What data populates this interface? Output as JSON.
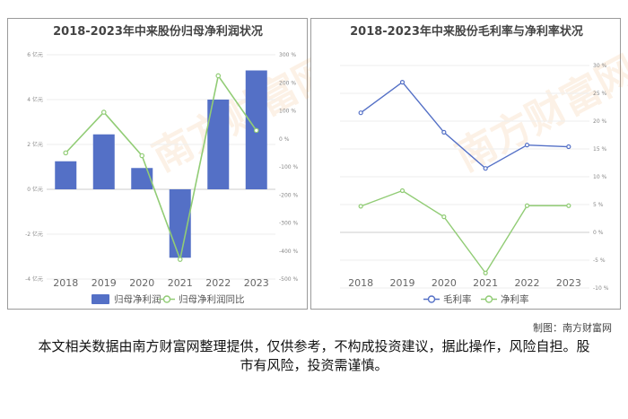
{
  "credit": "制图：南方财富网",
  "disclaimer": "本文相关数据由南方财富网整理提供，仅供参考，不构成投资建议，据此操作，风险自担。股市有风险，投资需谨慎。",
  "watermark": "南方财富网 southmoney.com",
  "colors": {
    "bar": "#5470c6",
    "green": "#91cc75",
    "blue": "#5470c6"
  },
  "chart_data": [
    {
      "type": "bar",
      "title": "2018-2023年中来股份归母净利润状况",
      "categories": [
        "2018",
        "2019",
        "2020",
        "2021",
        "2022",
        "2023"
      ],
      "y_left": {
        "ticks": [
          6,
          4,
          2,
          0,
          -2,
          -4
        ],
        "tick_labels": [
          "6 亿元",
          "4 亿元",
          "2 亿元",
          "0 亿元",
          "-2 亿元",
          "-4 亿元"
        ],
        "ylim": [
          -4,
          6
        ]
      },
      "y_right": {
        "ticks": [
          300,
          200,
          100,
          0,
          -100,
          -200,
          -300,
          -400,
          -500
        ],
        "tick_labels": [
          "300 %",
          "200 %",
          "100 %",
          "0 %",
          "-100 %",
          "-200 %",
          "-300 %",
          "-400 %",
          "-500 %"
        ],
        "ylim": [
          -500,
          300
        ]
      },
      "series": [
        {
          "name": "归母净利润",
          "kind": "bar",
          "axis": "left",
          "values": [
            1.25,
            2.45,
            0.95,
            -3.05,
            4.0,
            5.3
          ]
        },
        {
          "name": "归母净利润同比",
          "kind": "line",
          "axis": "right",
          "values": [
            -50,
            95,
            -60,
            -430,
            225,
            30
          ]
        }
      ],
      "legend": [
        "归母净利润",
        "归母净利润同比"
      ],
      "legend_position": "bottom"
    },
    {
      "type": "line",
      "title": "2018-2023年中来股份毛利率与净利率状况",
      "categories": [
        "2018",
        "2019",
        "2020",
        "2021",
        "2022",
        "2023"
      ],
      "y": {
        "ticks": [
          30,
          25,
          20,
          15,
          10,
          5,
          0,
          -5,
          -10
        ],
        "tick_labels": [
          "30 %",
          "25 %",
          "20 %",
          "15 %",
          "10 %",
          "5 %",
          "0 %",
          "-5 %",
          "-10 %"
        ],
        "ylim": [
          -10,
          30
        ]
      },
      "series": [
        {
          "name": "毛利率",
          "values": [
            21.5,
            27.0,
            18.0,
            11.5,
            15.7,
            15.4
          ]
        },
        {
          "name": "净利率",
          "values": [
            4.7,
            7.5,
            2.8,
            -7.3,
            4.8,
            4.8
          ]
        }
      ],
      "legend": [
        "毛利率",
        "净利率"
      ],
      "legend_position": "bottom"
    }
  ]
}
